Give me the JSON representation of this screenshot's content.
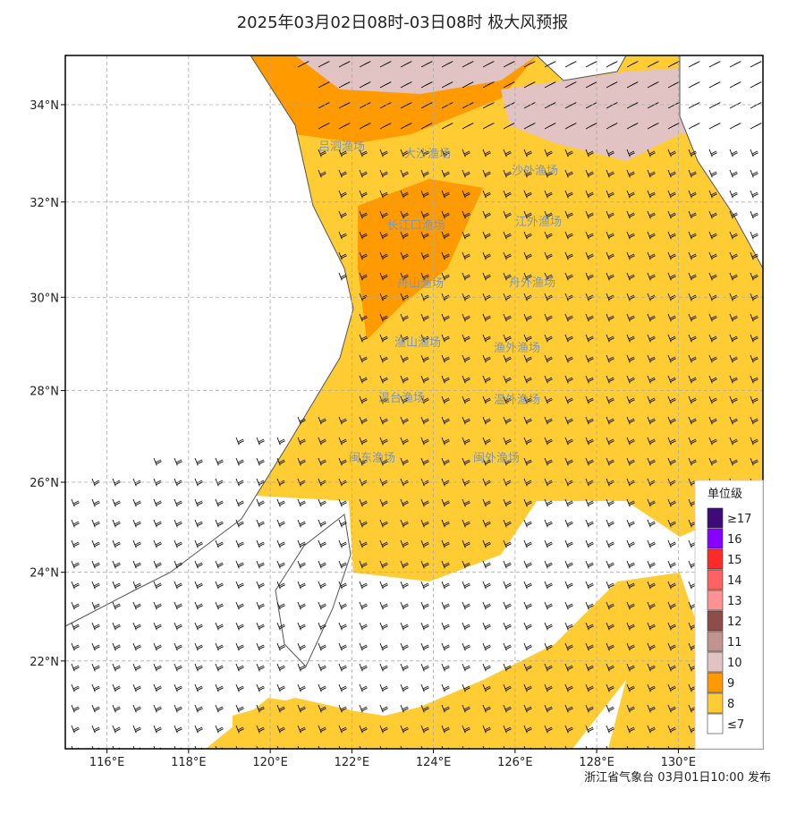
{
  "header": {
    "title": "2025年03月02日08时-03日08时 极大风预报"
  },
  "map": {
    "lon_ticks": [
      {
        "value": 116,
        "label": "116°E"
      },
      {
        "value": 118,
        "label": "118°E"
      },
      {
        "value": 120,
        "label": "120°E"
      },
      {
        "value": 122,
        "label": "122°E"
      },
      {
        "value": 124,
        "label": "124°E"
      },
      {
        "value": 126,
        "label": "126°E"
      },
      {
        "value": 128,
        "label": "128°E"
      },
      {
        "value": 130,
        "label": "130°E"
      }
    ],
    "lat_ticks": [
      {
        "value": 34,
        "label": "34°N"
      },
      {
        "value": 32,
        "label": "32°N"
      },
      {
        "value": 30,
        "label": "30°N"
      },
      {
        "value": 28,
        "label": "28°N"
      },
      {
        "value": 26,
        "label": "26°N"
      },
      {
        "value": 24,
        "label": "24°N"
      },
      {
        "value": 22,
        "label": "22°N"
      }
    ],
    "fishing_grounds": [
      "吕泗渔场",
      "大沙渔场",
      "沙外渔场",
      "长江口渔场",
      "江外渔场",
      "舟山渔场",
      "舟外渔场",
      "渔山渔场",
      "渔外渔场",
      "温台渔场",
      "温外渔场",
      "闽东渔场",
      "闽外渔场"
    ]
  },
  "legend": {
    "title": "单位级",
    "items": [
      {
        "label": "≥17",
        "color": "#3f0a7a"
      },
      {
        "label": "16",
        "color": "#8800ff"
      },
      {
        "label": "15",
        "color": "#ff2a2a"
      },
      {
        "label": "14",
        "color": "#ff6262"
      },
      {
        "label": "13",
        "color": "#ff9292"
      },
      {
        "label": "12",
        "color": "#8e4d48"
      },
      {
        "label": "11",
        "color": "#c29490"
      },
      {
        "label": "10",
        "color": "#e2c3c3"
      },
      {
        "label": "9",
        "color": "#ff9a00"
      },
      {
        "label": "8",
        "color": "#ffcc33"
      },
      {
        "label": "≤7",
        "color": "#ffffff"
      }
    ]
  },
  "footer": {
    "issuer": "浙江省气象台 03月01日10:00 发布"
  }
}
